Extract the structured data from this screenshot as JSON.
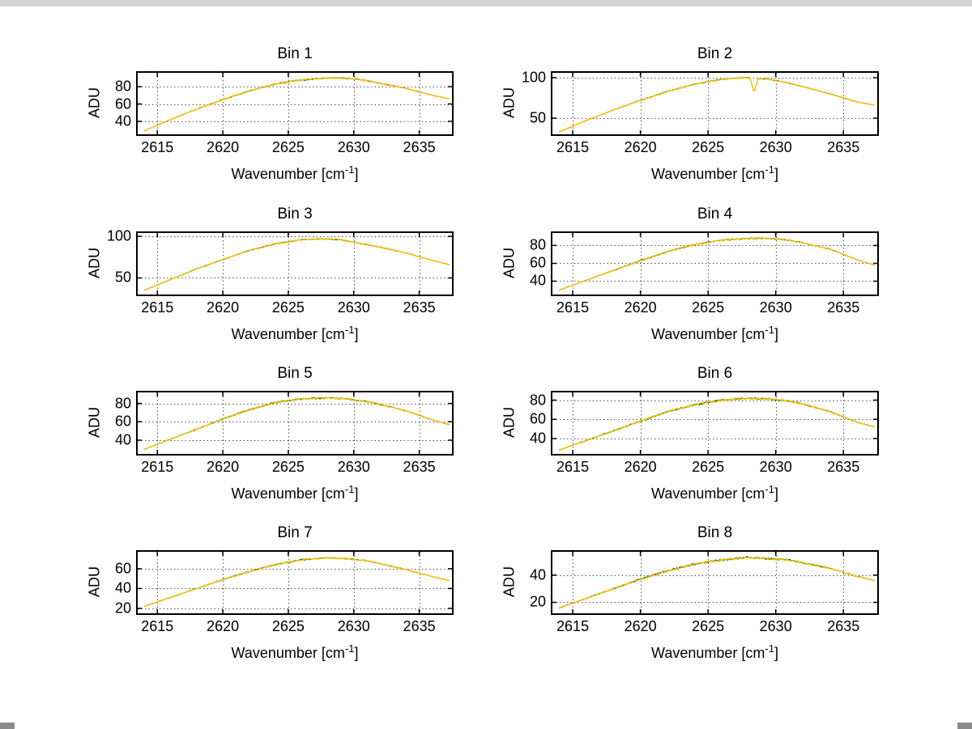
{
  "figure": {
    "background": "#ffffff",
    "grid_color": "#555555",
    "axis_color": "#000000",
    "series": [
      {
        "name": "trace-black",
        "color": "#151515",
        "width": 1,
        "jitter": 1.0
      },
      {
        "name": "trace-green",
        "color": "#00a000",
        "width": 1,
        "jitter": 0.9
      },
      {
        "name": "trace-yellow",
        "color": "#ffbf00",
        "width": 1.4,
        "jitter": 1.05
      }
    ]
  },
  "labels": {
    "ylabel": "ADU",
    "xlabel_prefix": "Wavenumber [cm",
    "xlabel_sup": "-1",
    "xlabel_suffix": "]"
  },
  "chart_data": [
    {
      "type": "line",
      "title": "Bin 1",
      "xlabel": "Wavenumber [cm-1]",
      "ylabel": "ADU",
      "xlim": [
        2613.5,
        2637.5
      ],
      "ylim": [
        25,
        96
      ],
      "xticks": [
        2615,
        2620,
        2625,
        2630,
        2635
      ],
      "yticks": [
        40,
        60,
        80
      ],
      "noise": 1.4,
      "x": [
        2614,
        2616,
        2618,
        2620,
        2622,
        2624,
        2625.5,
        2627,
        2628,
        2629,
        2630,
        2631,
        2632,
        2634,
        2636,
        2637.3
      ],
      "y": [
        29,
        42,
        54,
        65,
        75,
        83,
        87,
        89,
        90,
        90,
        89,
        87,
        84,
        78,
        70,
        66
      ]
    },
    {
      "type": "line",
      "title": "Bin 2",
      "xlabel": "Wavenumber [cm-1]",
      "ylabel": "ADU",
      "xlim": [
        2613.5,
        2637.5
      ],
      "ylim": [
        30,
        106
      ],
      "xticks": [
        2615,
        2620,
        2625,
        2630,
        2635
      ],
      "yticks": [
        50,
        100
      ],
      "noise": 1.2,
      "x": [
        2614,
        2616,
        2618,
        2620,
        2622,
        2624,
        2626,
        2627.5,
        2628.1,
        2628.4,
        2628.7,
        2629.5,
        2630.5,
        2632,
        2634,
        2636,
        2637.3
      ],
      "y": [
        33,
        47,
        60,
        72,
        83,
        92,
        98,
        100,
        100,
        82,
        99,
        98,
        95,
        89,
        80,
        70,
        66
      ]
    },
    {
      "type": "line",
      "title": "Bin 3",
      "xlabel": "Wavenumber [cm-1]",
      "ylabel": "ADU",
      "xlim": [
        2613.5,
        2637.5
      ],
      "ylim": [
        30,
        104
      ],
      "xticks": [
        2615,
        2620,
        2625,
        2630,
        2635
      ],
      "yticks": [
        50,
        100
      ],
      "noise": 1.2,
      "x": [
        2614,
        2616,
        2618,
        2620,
        2622,
        2624,
        2626,
        2627.5,
        2629,
        2630,
        2631,
        2632,
        2634,
        2636,
        2637.3
      ],
      "y": [
        35,
        48,
        61,
        72,
        83,
        91,
        96,
        97,
        96,
        93,
        90,
        87,
        80,
        71,
        66
      ]
    },
    {
      "type": "line",
      "title": "Bin 4",
      "xlabel": "Wavenumber [cm-1]",
      "ylabel": "ADU",
      "xlim": [
        2613.5,
        2637.5
      ],
      "ylim": [
        25,
        94
      ],
      "xticks": [
        2615,
        2620,
        2625,
        2630,
        2635
      ],
      "yticks": [
        40,
        60,
        80
      ],
      "noise": 1.4,
      "x": [
        2614,
        2616,
        2618,
        2620,
        2622,
        2624,
        2626,
        2628,
        2629.5,
        2631,
        2632,
        2634,
        2636,
        2637.3
      ],
      "y": [
        30,
        41,
        52,
        63,
        73,
        81,
        86,
        88,
        88,
        86,
        83,
        76,
        64,
        58
      ]
    },
    {
      "type": "line",
      "title": "Bin 5",
      "xlabel": "Wavenumber [cm-1]",
      "ylabel": "ADU",
      "xlim": [
        2613.5,
        2637.5
      ],
      "ylim": [
        25,
        92
      ],
      "xticks": [
        2615,
        2620,
        2625,
        2630,
        2635
      ],
      "yticks": [
        40,
        60,
        80
      ],
      "noise": 1.6,
      "x": [
        2614,
        2616,
        2618,
        2620,
        2622,
        2624,
        2626,
        2628,
        2629.5,
        2631,
        2632,
        2634,
        2636,
        2637.3
      ],
      "y": [
        30,
        41,
        52,
        63,
        73,
        81,
        85,
        86,
        85,
        82,
        79,
        72,
        62,
        57
      ]
    },
    {
      "type": "line",
      "title": "Bin 6",
      "xlabel": "Wavenumber [cm-1]",
      "ylabel": "ADU",
      "xlim": [
        2613.5,
        2637.5
      ],
      "ylim": [
        24,
        88
      ],
      "xticks": [
        2615,
        2620,
        2625,
        2630,
        2635
      ],
      "yticks": [
        40,
        60,
        80
      ],
      "noise": 1.8,
      "x": [
        2614,
        2616,
        2618,
        2620,
        2622,
        2624,
        2626,
        2628,
        2629.5,
        2631,
        2632,
        2634,
        2636,
        2637.3
      ],
      "y": [
        28,
        38,
        48,
        58,
        68,
        75,
        80,
        82,
        81,
        79,
        76,
        68,
        57,
        52
      ]
    },
    {
      "type": "line",
      "title": "Bin 7",
      "xlabel": "Wavenumber [cm-1]",
      "ylabel": "ADU",
      "xlim": [
        2613.5,
        2637.5
      ],
      "ylim": [
        15,
        77
      ],
      "xticks": [
        2615,
        2620,
        2625,
        2630,
        2635
      ],
      "yticks": [
        20,
        40,
        60
      ],
      "noise": 1.2,
      "x": [
        2614,
        2616,
        2618,
        2620,
        2622,
        2624,
        2626,
        2628,
        2629.5,
        2631,
        2632,
        2634,
        2636,
        2637.3
      ],
      "y": [
        22,
        31,
        40,
        49,
        57,
        64,
        69,
        71,
        70,
        68,
        65,
        59,
        52,
        48
      ]
    },
    {
      "type": "line",
      "title": "Bin 8",
      "xlabel": "Wavenumber [cm-1]",
      "ylabel": "ADU",
      "xlim": [
        2613.5,
        2637.5
      ],
      "ylim": [
        12,
        57
      ],
      "xticks": [
        2615,
        2620,
        2625,
        2630,
        2635
      ],
      "yticks": [
        20,
        40
      ],
      "noise": 1.4,
      "x": [
        2614,
        2616,
        2618,
        2620,
        2622,
        2624,
        2626,
        2628,
        2629.5,
        2631,
        2632,
        2634,
        2636,
        2637.3
      ],
      "y": [
        16,
        23,
        30,
        37,
        43,
        48,
        51,
        53,
        52,
        51,
        49,
        45,
        39,
        36
      ]
    }
  ]
}
